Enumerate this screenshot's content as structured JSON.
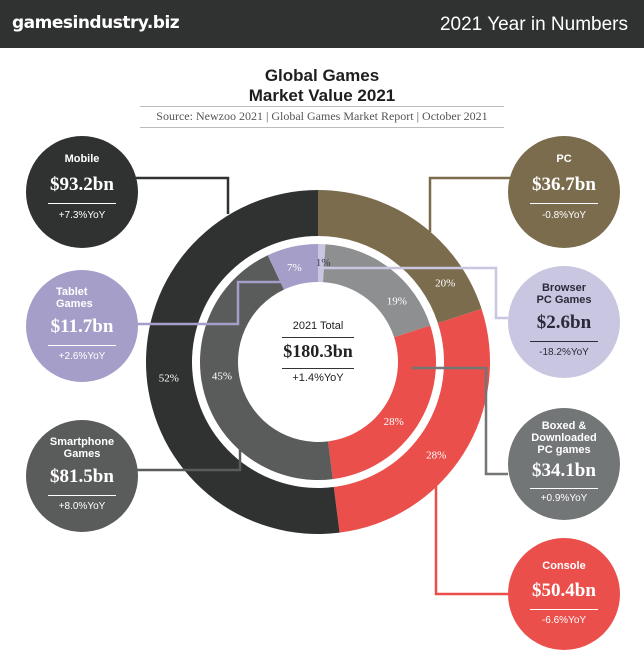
{
  "header": {
    "brand": "gamesindustry.biz",
    "section_title": "2021 Year in Numbers"
  },
  "chart_data": {
    "type": "pie",
    "title": "Global Games Market Value 2021",
    "title_lines": [
      "Global Games",
      "Market Value 2021"
    ],
    "subtitle": "Source: Newzoo 2021 | Global Games Market Report | October 2021",
    "total": {
      "label": "2021 Total",
      "value": "$180.3bn",
      "yoy": "+1.4%YoY"
    },
    "outer_ring": [
      {
        "name": "Mobile",
        "value_bn": 93.2,
        "value_label": "$93.2bn",
        "yoy": "+7.3%YoY",
        "share": 52,
        "share_label": "52%",
        "color": "#2f3230"
      },
      {
        "name": "PC",
        "value_bn": 36.7,
        "value_label": "$36.7bn",
        "yoy": "-0.8%YoY",
        "share": 20,
        "share_label": "20%",
        "color": "#7b6c4e"
      },
      {
        "name": "Console",
        "value_bn": 50.4,
        "value_label": "$50.4bn",
        "yoy": "-6.6%YoY",
        "share": 28,
        "share_label": "28%",
        "color": "#ea4f4b"
      }
    ],
    "inner_ring": [
      {
        "name": "Browser PC Games",
        "value_bn": 2.6,
        "value_label": "$2.6bn",
        "yoy": "-18.2%YoY",
        "share": 1,
        "share_label": "1%",
        "color": "#c8c6e0"
      },
      {
        "name": "Boxed & Downloaded PC games",
        "value_bn": 34.1,
        "value_label": "$34.1bn",
        "yoy": "+0.9%YoY",
        "share": 19,
        "share_label": "19%",
        "color": "#8e8f90"
      },
      {
        "name": "Console",
        "value_bn": 50.4,
        "value_label": "$50.4bn",
        "yoy": "-6.6%YoY",
        "share": 28,
        "share_label": "28%",
        "color": "#ea4f4b"
      },
      {
        "name": "Smartphone Games",
        "value_bn": 81.5,
        "value_label": "$81.5bn",
        "yoy": "+8.0%YoY",
        "share": 45,
        "share_label": "45%",
        "color": "#5a5b5b"
      },
      {
        "name": "Tablet Games",
        "value_bn": 11.7,
        "value_label": "$11.7bn",
        "yoy": "+2.6%YoY",
        "share": 7,
        "share_label": "7%",
        "color": "#a49ec8"
      }
    ],
    "callouts": {
      "mobile": {
        "name": "Mobile",
        "value": "$93.2bn",
        "yoy": "+7.3%YoY"
      },
      "tablet": {
        "name_lines": [
          "Tablet",
          "Games"
        ],
        "value": "$11.7bn",
        "yoy": "+2.6%YoY"
      },
      "smartphone": {
        "name_lines": [
          "Smartphone",
          "Games"
        ],
        "value": "$81.5bn",
        "yoy": "+8.0%YoY"
      },
      "pc": {
        "name": "PC",
        "value": "$36.7bn",
        "yoy": "-0.8%YoY"
      },
      "browser": {
        "name_lines": [
          "Browser",
          "PC Games"
        ],
        "value": "$2.6bn",
        "yoy": "-18.2%YoY"
      },
      "boxed": {
        "name_lines": [
          "Boxed &",
          "Downloaded",
          "PC games"
        ],
        "value": "$34.1bn",
        "yoy": "+0.9%YoY"
      },
      "console": {
        "name": "Console",
        "value": "$50.4bn",
        "yoy": "-6.6%YoY"
      }
    }
  }
}
